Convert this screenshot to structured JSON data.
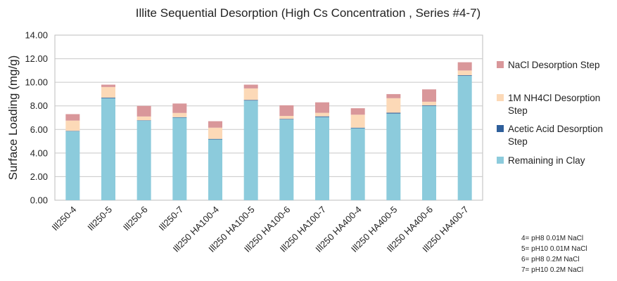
{
  "chart_data": {
    "type": "bar",
    "stacked": true,
    "title": "Illite Sequential Desorption (High Cs Concentration , Series #4-7)",
    "xlabel": "",
    "ylabel": "Surface Loading (mg/g)",
    "ylim": [
      0,
      14
    ],
    "yticks": [
      "0.00",
      "2.00",
      "4.00",
      "6.00",
      "8.00",
      "10.00",
      "12.00",
      "14.00"
    ],
    "grid": true,
    "legend_position": "right",
    "categories": [
      "Ill250-4",
      "Ill250-5",
      "Ill250-6",
      "Ill250-7",
      "Ill250 HA100-4",
      "Ill250 HA100-5",
      "Ill250 HA100-6",
      "Ill250 HA100-7",
      "Ill250 HA400-4",
      "Ill250 HA400-5",
      "Ill250 HA400-6",
      "Ill250 HA400-7"
    ],
    "series": [
      {
        "name": "Remaining in Clay",
        "color": "#8ccbdc",
        "values": [
          5.85,
          8.65,
          6.75,
          7.0,
          5.15,
          8.45,
          6.85,
          7.05,
          6.1,
          7.35,
          8.0,
          10.55
        ]
      },
      {
        "name": "Acetic Acid Desorption Step",
        "color": "#2e5f9b",
        "values": [
          0.03,
          0.05,
          0.03,
          0.04,
          0.05,
          0.05,
          0.04,
          0.06,
          0.05,
          0.07,
          0.05,
          0.05
        ]
      },
      {
        "name": "1M NH4Cl Desorption Step",
        "color": "#fcd9b7",
        "values": [
          0.87,
          0.9,
          0.32,
          0.36,
          0.95,
          0.98,
          0.26,
          0.3,
          1.1,
          1.23,
          0.3,
          0.4
        ]
      },
      {
        "name": "NaCl Desorption Step",
        "color": "#d9979a",
        "values": [
          0.55,
          0.2,
          0.9,
          0.8,
          0.55,
          0.32,
          0.9,
          0.89,
          0.55,
          0.35,
          1.05,
          0.7
        ]
      }
    ],
    "legend_order": [
      "NaCl Desorption Step",
      "1M NH4Cl Desorption Step",
      "Acetic Acid Desorption Step",
      "Remaining in Clay"
    ],
    "legend_lines": {
      "NaCl Desorption Step": [
        "NaCl Desorption Step"
      ],
      "1M NH4Cl Desorption Step": [
        "1M NH4Cl Desorption",
        "Step"
      ],
      "Acetic Acid Desorption Step": [
        "Acetic Acid Desorption",
        "Step"
      ],
      "Remaining in Clay": [
        "Remaining in Clay"
      ]
    },
    "annotations": [
      "4= pH8 0.01M NaCl",
      "5= pH10 0.01M NaCl",
      "6= pH8 0.2M NaCl",
      "7= pH10 0.2M NaCl"
    ]
  }
}
